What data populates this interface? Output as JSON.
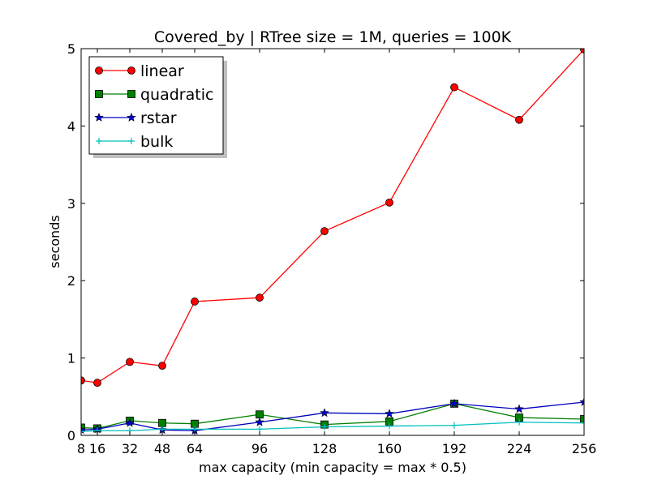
{
  "chart_data": {
    "type": "line",
    "title": "Covered_by | RTree size = 1M, queries = 100K",
    "xlabel": "max capacity (min capacity = max * 0.5)",
    "ylabel": "seconds",
    "x": [
      8,
      16,
      32,
      48,
      64,
      96,
      128,
      160,
      192,
      224,
      256
    ],
    "xticks": [
      "8",
      "16",
      "32",
      "48",
      "64",
      "96",
      "128",
      "160",
      "192",
      "224",
      "256"
    ],
    "yticks": [
      "0",
      "1",
      "2",
      "3",
      "4",
      "5"
    ],
    "xlim": [
      8,
      256
    ],
    "ylim": [
      0,
      5
    ],
    "grid": false,
    "legend_position": "top-left",
    "series": [
      {
        "name": "linear",
        "color": "#ff0000",
        "marker": "circle",
        "values": [
          0.71,
          0.68,
          0.95,
          0.9,
          1.73,
          1.78,
          2.64,
          3.01,
          4.5,
          4.08,
          4.99
        ]
      },
      {
        "name": "quadratic",
        "color": "#007f00",
        "marker": "square",
        "values": [
          0.1,
          0.09,
          0.19,
          0.16,
          0.15,
          0.27,
          0.14,
          0.18,
          0.41,
          0.23,
          0.21
        ]
      },
      {
        "name": "rstar",
        "color": "#0000bf",
        "marker": "star",
        "values": [
          0.07,
          0.08,
          0.16,
          0.07,
          0.06,
          0.17,
          0.29,
          0.28,
          0.41,
          0.34,
          0.43
        ]
      },
      {
        "name": "bulk",
        "color": "#00bfbf",
        "marker": "plus",
        "values": [
          0.05,
          0.06,
          0.06,
          0.08,
          0.08,
          0.08,
          0.11,
          0.12,
          0.13,
          0.17,
          0.16
        ]
      }
    ]
  }
}
